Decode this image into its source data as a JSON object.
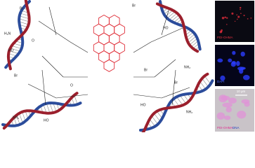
{
  "figure": {
    "structure_labels": [
      "Br",
      "H₂N",
      "HO",
      "O",
      "Br",
      "NH₂",
      "HO",
      "Br",
      "HO",
      "NH₂",
      "Br",
      "HO",
      "NH₂",
      "Br",
      "O"
    ],
    "panels": [
      {
        "label": "PDI-OHMA"
      },
      {
        "label": "DAPI"
      },
      {
        "labels": [
          "PDI-OHMA",
          "DNA"
        ],
        "scale_bar": "10 μm"
      }
    ]
  }
}
